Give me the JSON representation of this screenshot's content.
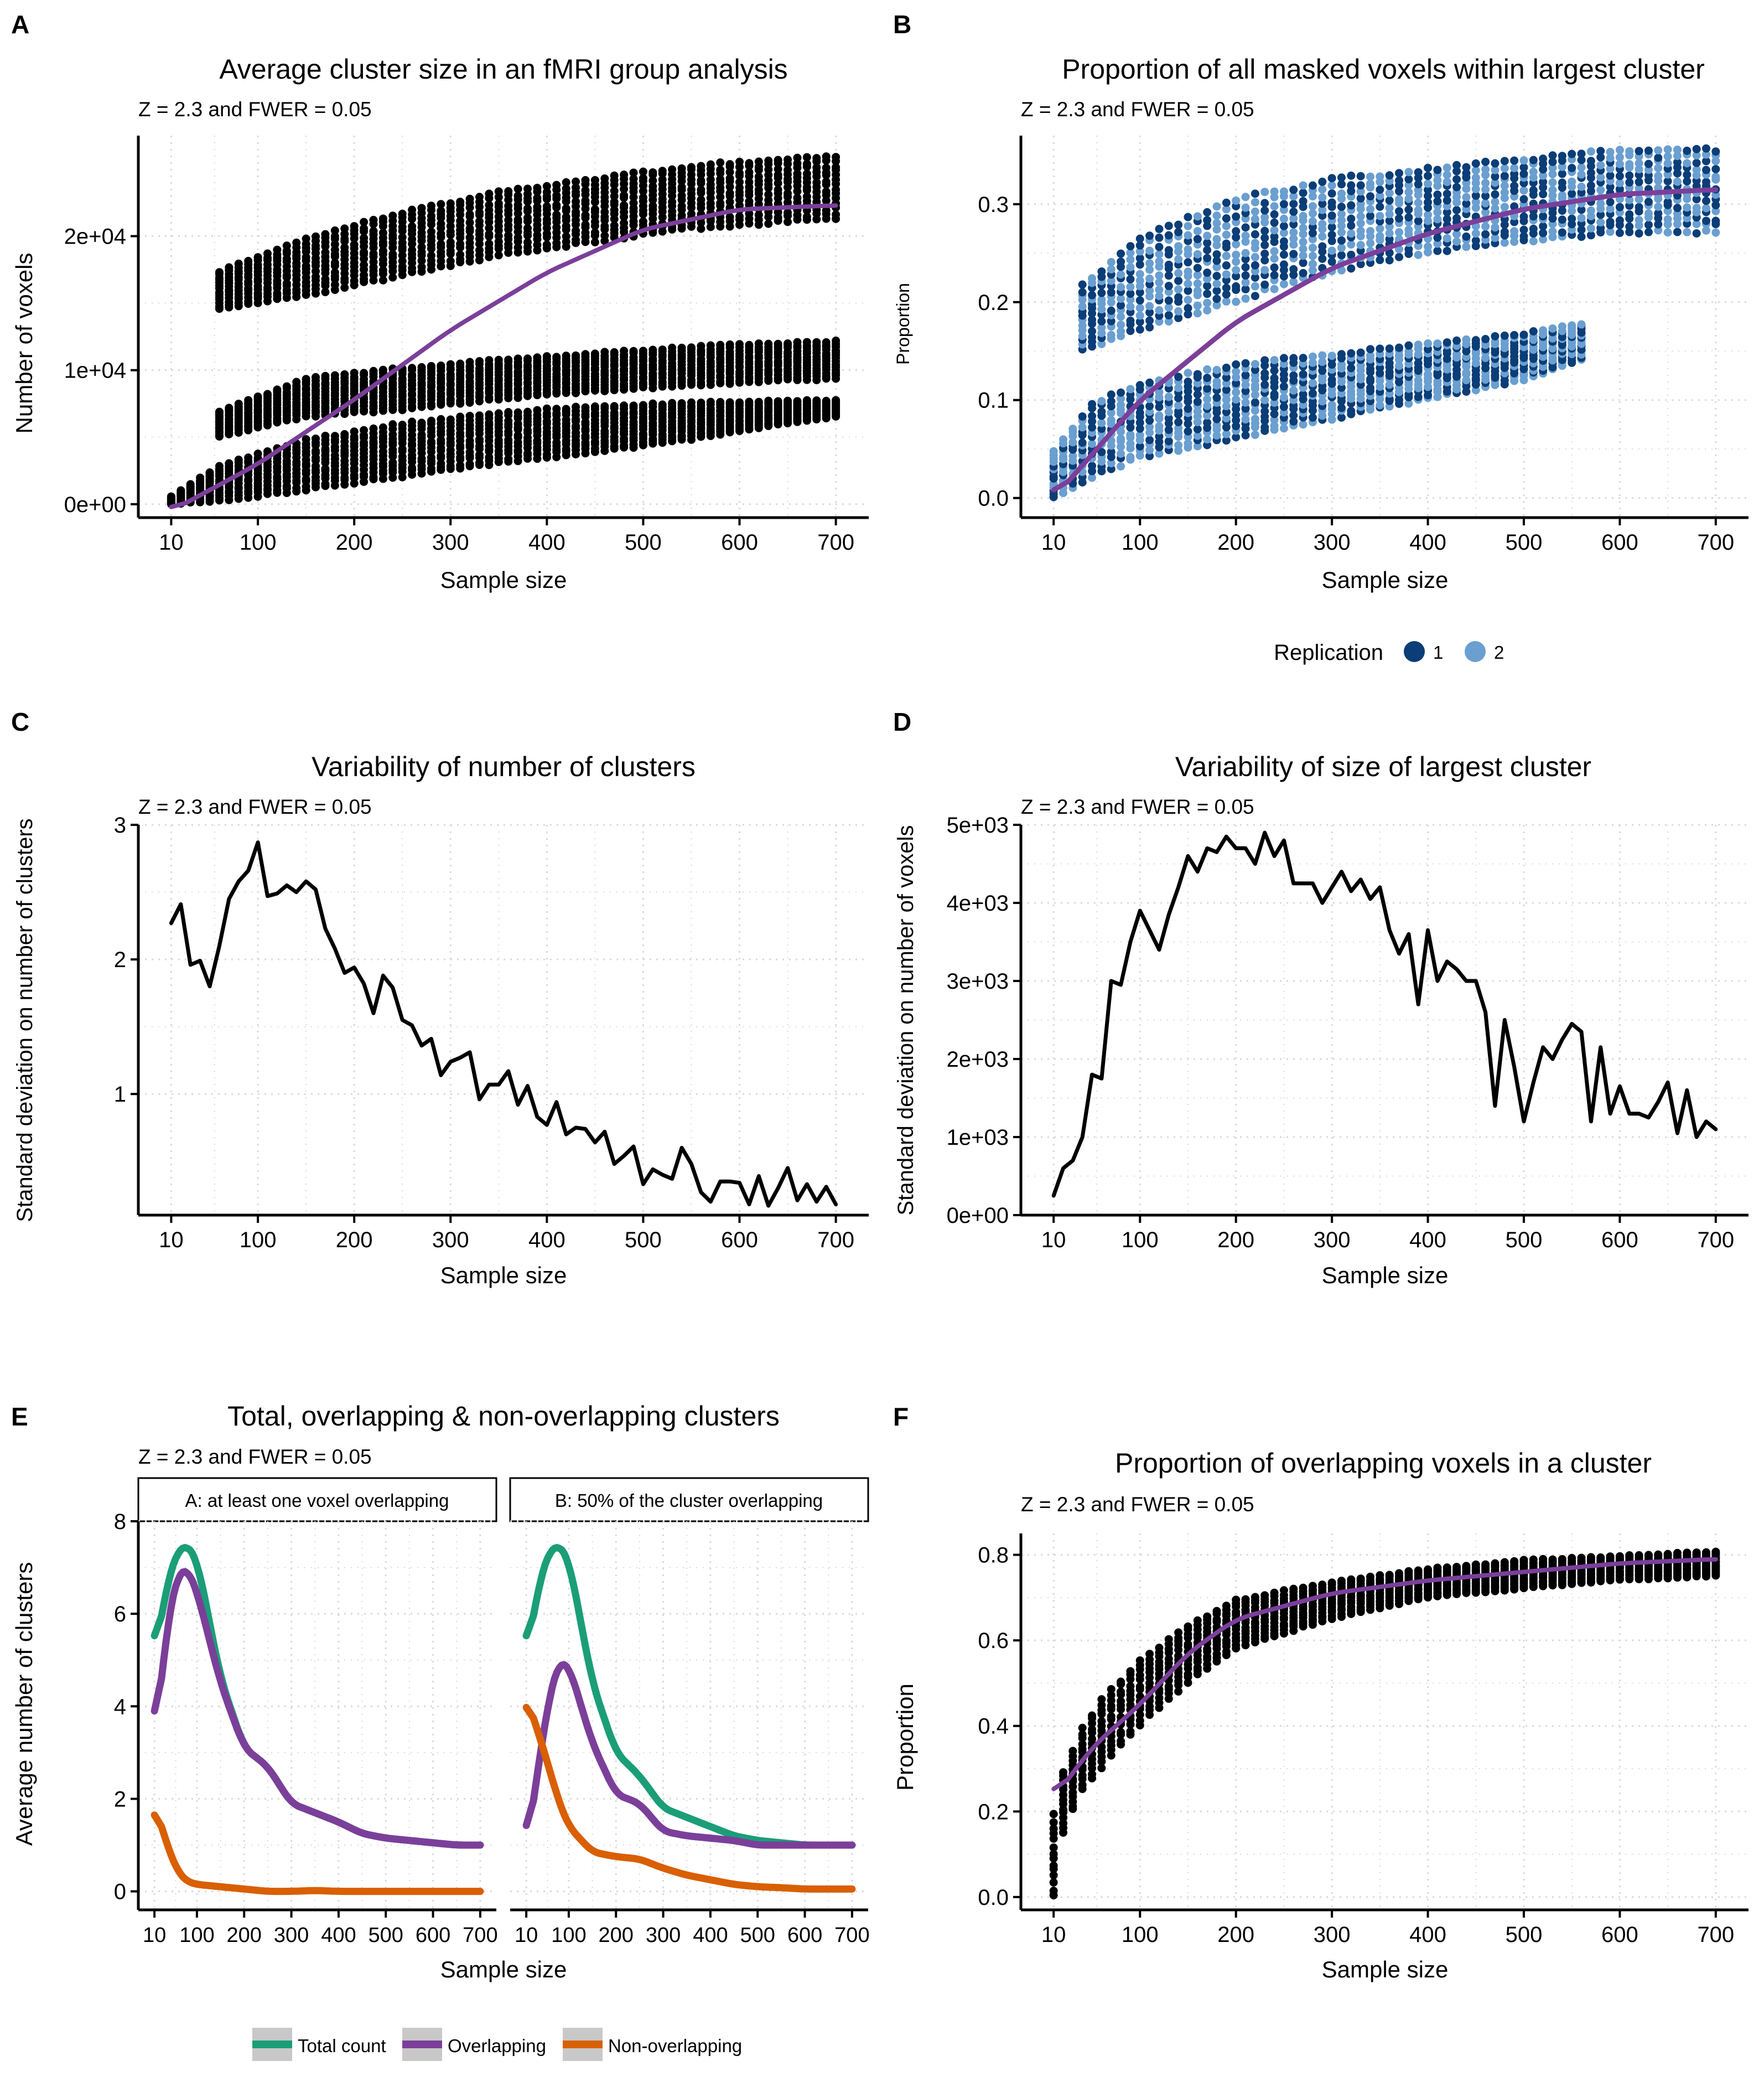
{
  "colors": {
    "purple": "#7b3f9a",
    "green": "#1b9e77",
    "orange": "#d95f02",
    "navy": "#0b3d77",
    "lightblue": "#6a9fd0",
    "grid": "#d9d9d9"
  },
  "x_ticks": [
    10,
    100,
    200,
    300,
    400,
    500,
    600,
    700
  ],
  "panel_a": {
    "letter": "A",
    "subtitle": "Z = 2.3 and FWER = 0.05",
    "chart_data": {
      "type": "scatter",
      "title": "Average cluster size in an fMRI group analysis",
      "xlabel": "Sample size",
      "ylabel": "Number of voxels",
      "xlim": [
        10,
        700
      ],
      "ylim": [
        -1000,
        27500
      ],
      "y_ticks": [
        0,
        10000,
        20000
      ],
      "y_tick_labels": [
        "0e+00",
        "1e+04",
        "2e+04"
      ],
      "bands": [
        {
          "name": "upper",
          "x": [
            60,
            150,
            250,
            350,
            450,
            550,
            650,
            700
          ],
          "y_low": [
            14500,
            15500,
            17000,
            18500,
            19500,
            20500,
            21000,
            21200
          ],
          "y_high": [
            17500,
            20000,
            22000,
            23500,
            24500,
            25500,
            26000,
            26200
          ]
        },
        {
          "name": "middle",
          "x": [
            60,
            150,
            250,
            350,
            450,
            550,
            650,
            700
          ],
          "y_low": [
            5000,
            6500,
            7000,
            7800,
            8400,
            8800,
            9200,
            9300
          ],
          "y_high": [
            7000,
            9500,
            10300,
            10900,
            11400,
            11900,
            12200,
            12300
          ]
        },
        {
          "name": "lower",
          "x": [
            10,
            60,
            150,
            250,
            350,
            450,
            550,
            650,
            700
          ],
          "y_low": [
            0,
            200,
            1000,
            2000,
            3000,
            3800,
            4800,
            6000,
            6500
          ],
          "y_high": [
            600,
            3000,
            5000,
            6200,
            7000,
            7500,
            7700,
            7800,
            7800
          ]
        }
      ],
      "smooth": {
        "x": [
          10,
          100,
          200,
          300,
          400,
          500,
          600,
          700
        ],
        "y": [
          -500,
          3000,
          7800,
          13000,
          17300,
          20500,
          22000,
          22300
        ]
      }
    }
  },
  "panel_b": {
    "letter": "B",
    "subtitle": "Z = 2.3 and FWER = 0.05",
    "chart_data": {
      "type": "scatter",
      "title": "Proportion of all masked voxels within largest cluster",
      "xlabel": "Sample size",
      "ylabel": "Proportion",
      "xlim": [
        10,
        700
      ],
      "ylim": [
        -0.02,
        0.37
      ],
      "y_ticks": [
        0.0,
        0.1,
        0.2,
        0.3
      ],
      "y_tick_labels": [
        "0.0",
        "0.1",
        "0.2",
        "0.3"
      ],
      "bands": [
        {
          "name": "upper",
          "x": [
            40,
            100,
            200,
            300,
            400,
            500,
            600,
            700
          ],
          "y_low": [
            0.15,
            0.17,
            0.2,
            0.23,
            0.25,
            0.26,
            0.27,
            0.27
          ],
          "y_high": [
            0.22,
            0.27,
            0.31,
            0.33,
            0.34,
            0.35,
            0.36,
            0.36
          ]
        },
        {
          "name": "lower",
          "x": [
            10,
            50,
            100,
            200,
            300,
            400,
            500,
            560
          ],
          "y_low": [
            0.0,
            0.02,
            0.04,
            0.06,
            0.08,
            0.1,
            0.12,
            0.14
          ],
          "y_high": [
            0.05,
            0.1,
            0.12,
            0.14,
            0.15,
            0.16,
            0.17,
            0.18
          ]
        }
      ],
      "smooth": {
        "x": [
          10,
          100,
          200,
          300,
          400,
          500,
          600,
          700
        ],
        "y": [
          0.0,
          0.1,
          0.18,
          0.235,
          0.27,
          0.295,
          0.31,
          0.315
        ]
      },
      "legend": {
        "title": "Replication",
        "entries": [
          "1",
          "2"
        ]
      }
    }
  },
  "panel_c": {
    "letter": "C",
    "subtitle": "Z = 2.3 and FWER = 0.05",
    "chart_data": {
      "type": "line",
      "title": "Variability of number of clusters",
      "xlabel": "Sample size",
      "ylabel": "Standard deviation on number of clusters",
      "xlim": [
        10,
        700
      ],
      "ylim": [
        0.1,
        3.0
      ],
      "y_ticks": [
        1,
        2,
        3
      ],
      "y_tick_labels": [
        "1",
        "2",
        "3"
      ],
      "x": [
        10,
        20,
        30,
        40,
        50,
        60,
        70,
        80,
        90,
        100,
        110,
        120,
        130,
        140,
        150,
        160,
        170,
        180,
        190,
        200,
        210,
        220,
        230,
        240,
        250,
        260,
        270,
        280,
        290,
        300,
        310,
        320,
        330,
        340,
        350,
        360,
        370,
        380,
        390,
        400,
        410,
        420,
        430,
        440,
        450,
        460,
        470,
        480,
        490,
        500,
        510,
        520,
        530,
        540,
        550,
        560,
        570,
        580,
        590,
        600,
        610,
        620,
        630,
        640,
        650,
        660,
        670,
        680,
        690,
        700
      ],
      "y": [
        2.27,
        2.41,
        1.96,
        1.99,
        1.8,
        2.1,
        2.45,
        2.58,
        2.66,
        2.87,
        2.47,
        2.49,
        2.55,
        2.5,
        2.58,
        2.52,
        2.23,
        2.08,
        1.9,
        1.94,
        1.82,
        1.6,
        1.88,
        1.79,
        1.55,
        1.51,
        1.36,
        1.41,
        1.14,
        1.24,
        1.27,
        1.31,
        0.96,
        1.07,
        1.07,
        1.17,
        0.92,
        1.06,
        0.83,
        0.77,
        0.94,
        0.7,
        0.75,
        0.74,
        0.64,
        0.72,
        0.48,
        0.54,
        0.61,
        0.33,
        0.44,
        0.4,
        0.37,
        0.6,
        0.48,
        0.27,
        0.2,
        0.35,
        0.35,
        0.34,
        0.18,
        0.39,
        0.17,
        0.3,
        0.45,
        0.21,
        0.33,
        0.2,
        0.31,
        0.18
      ]
    }
  },
  "panel_d": {
    "letter": "D",
    "subtitle": "Z = 2.3 and FWER = 0.05",
    "chart_data": {
      "type": "line",
      "title": "Variability of size of largest cluster",
      "xlabel": "Sample size",
      "ylabel": "Standard deviation on number of voxels",
      "xlim": [
        10,
        700
      ],
      "ylim": [
        0,
        5000
      ],
      "y_ticks": [
        0,
        1000,
        2000,
        3000,
        4000,
        5000
      ],
      "y_tick_labels": [
        "0e+00",
        "1e+03",
        "2e+03",
        "3e+03",
        "4e+03",
        "5e+03"
      ],
      "x": [
        10,
        20,
        30,
        40,
        50,
        60,
        70,
        80,
        90,
        100,
        110,
        120,
        130,
        140,
        150,
        160,
        170,
        180,
        190,
        200,
        210,
        220,
        230,
        240,
        250,
        260,
        270,
        280,
        290,
        300,
        310,
        320,
        330,
        340,
        350,
        360,
        370,
        380,
        390,
        400,
        410,
        420,
        430,
        440,
        450,
        460,
        470,
        480,
        490,
        500,
        510,
        520,
        530,
        540,
        550,
        560,
        570,
        580,
        590,
        600,
        610,
        620,
        630,
        640,
        650,
        660,
        670,
        680,
        690,
        700
      ],
      "y": [
        250,
        600,
        700,
        1000,
        1800,
        1750,
        3000,
        2950,
        3500,
        3900,
        3650,
        3400,
        3850,
        4200,
        4600,
        4400,
        4700,
        4650,
        4850,
        4700,
        4700,
        4500,
        4900,
        4600,
        4800,
        4250,
        4250,
        4250,
        4000,
        4200,
        4400,
        4150,
        4300,
        4050,
        4200,
        3650,
        3350,
        3600,
        2700,
        3650,
        3000,
        3250,
        3150,
        3000,
        3000,
        2600,
        1400,
        2500,
        1900,
        1200,
        1700,
        2150,
        2000,
        2250,
        2450,
        2350,
        1200,
        2150,
        1300,
        1650,
        1300,
        1300,
        1250,
        1450,
        1700,
        1050,
        1600,
        1000,
        1200,
        1100
      ]
    }
  },
  "panel_e": {
    "letter": "E",
    "subtitle": "Z = 2.3 and FWER = 0.05",
    "chart_data": {
      "type": "line",
      "title": "Total, overlapping & non-overlapping clusters",
      "xlabel": "Sample size",
      "ylabel": "Average number of clusters",
      "xlim": [
        10,
        700
      ],
      "ylim": [
        -0.4,
        8.0
      ],
      "y_ticks": [
        0,
        2,
        4,
        6,
        8
      ],
      "y_tick_labels": [
        "0",
        "2",
        "4",
        "6",
        "8"
      ],
      "x_tick_labels": [
        "10",
        "100",
        "200",
        "300",
        "400",
        "500",
        "600",
        "700"
      ],
      "facets": [
        {
          "label": "A: at least one voxel overlapping",
          "x": [
            10,
            40,
            60,
            80,
            100,
            150,
            200,
            250,
            300,
            350,
            400,
            450,
            500,
            550,
            600,
            650,
            700
          ],
          "series": [
            {
              "name": "Total count",
              "values": [
                5.1,
                6.8,
                7.4,
                7.5,
                7.2,
                4.6,
                3.1,
                2.7,
                1.9,
                1.7,
                1.5,
                1.25,
                1.15,
                1.1,
                1.05,
                1.0,
                1.0
              ]
            },
            {
              "name": "Overlapping",
              "values": [
                3.2,
                6.0,
                6.9,
                7.0,
                6.5,
                4.5,
                3.1,
                2.7,
                1.9,
                1.7,
                1.5,
                1.25,
                1.15,
                1.1,
                1.05,
                1.0,
                1.0
              ]
            },
            {
              "name": "Non-overlapping",
              "values": [
                1.9,
                0.9,
                0.4,
                0.2,
                0.15,
                0.1,
                0.05,
                0.0,
                0.0,
                0.02,
                0.0,
                0.0,
                0.0,
                0.0,
                0.0,
                0.0,
                0.0
              ]
            }
          ]
        },
        {
          "label": "B: 50% of the cluster overlapping",
          "x": [
            10,
            40,
            60,
            80,
            100,
            150,
            200,
            250,
            300,
            350,
            400,
            450,
            500,
            550,
            600,
            650,
            700
          ],
          "series": [
            {
              "name": "Total count",
              "values": [
                5.1,
                6.8,
                7.4,
                7.5,
                7.2,
                4.5,
                3.0,
                2.5,
                1.8,
                1.6,
                1.4,
                1.2,
                1.1,
                1.05,
                1.0,
                1.0,
                1.0
              ]
            },
            {
              "name": "Overlapping",
              "values": [
                0.9,
                3.0,
                4.3,
                5.0,
                4.9,
                3.2,
                2.1,
                1.9,
                1.3,
                1.2,
                1.15,
                1.1,
                1.0,
                1.0,
                1.0,
                1.0,
                1.0
              ]
            },
            {
              "name": "Non-overlapping",
              "values": [
                4.2,
                3.3,
                2.6,
                1.9,
                1.4,
                0.85,
                0.75,
                0.7,
                0.5,
                0.35,
                0.25,
                0.15,
                0.1,
                0.08,
                0.05,
                0.05,
                0.05
              ]
            }
          ]
        }
      ],
      "legend": {
        "entries": [
          "Total count",
          "Overlapping",
          "Non-overlapping"
        ]
      }
    }
  },
  "panel_f": {
    "letter": "F",
    "subtitle": "Z = 2.3 and FWER = 0.05",
    "chart_data": {
      "type": "scatter",
      "title": "Proportion of overlapping voxels in a cluster",
      "xlabel": "Sample size",
      "ylabel": "Proportion",
      "xlim": [
        10,
        700
      ],
      "ylim": [
        -0.03,
        0.85
      ],
      "y_ticks": [
        0.0,
        0.2,
        0.4,
        0.6,
        0.8
      ],
      "y_tick_labels": [
        "0.0",
        "0.2",
        "0.4",
        "0.6",
        "0.8"
      ],
      "bands": [
        {
          "name": "main",
          "x": [
            10,
            20,
            40,
            60,
            100,
            150,
            200,
            300,
            400,
            500,
            600,
            700
          ],
          "y_low": [
            0.0,
            0.15,
            0.25,
            0.3,
            0.4,
            0.5,
            0.58,
            0.65,
            0.7,
            0.72,
            0.74,
            0.75
          ],
          "y_high": [
            0.2,
            0.3,
            0.4,
            0.47,
            0.56,
            0.64,
            0.7,
            0.74,
            0.77,
            0.79,
            0.8,
            0.81
          ]
        }
      ],
      "smooth": {
        "x": [
          10,
          50,
          100,
          150,
          200,
          300,
          400,
          500,
          600,
          700
        ],
        "y": [
          0.23,
          0.35,
          0.45,
          0.57,
          0.65,
          0.71,
          0.74,
          0.76,
          0.78,
          0.79
        ]
      }
    }
  }
}
